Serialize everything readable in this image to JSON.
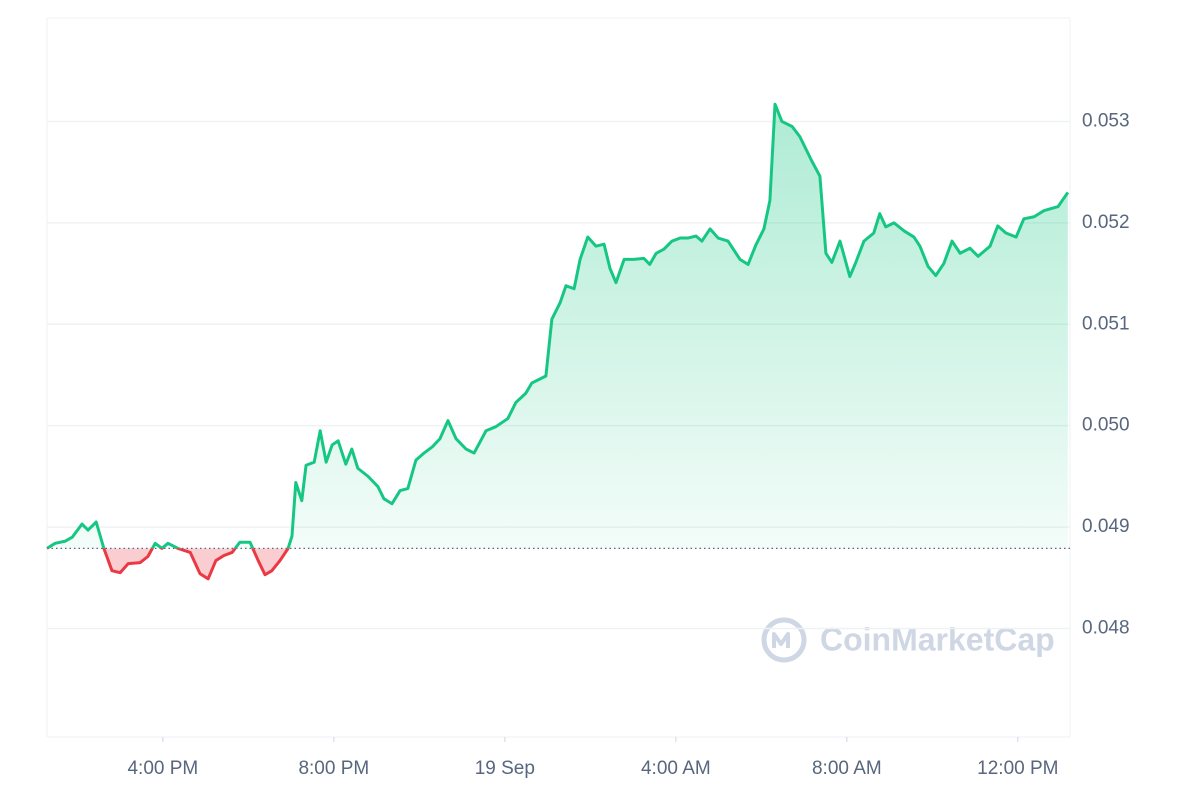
{
  "chart_data": {
    "type": "line",
    "watermark": "CoinMarketCap",
    "xlim": [
      13.29,
      37.22
    ],
    "xticks": [
      {
        "value": 16,
        "label": "4:00 PM"
      },
      {
        "value": 20,
        "label": "8:00 PM"
      },
      {
        "value": 24,
        "label": "19 Sep"
      },
      {
        "value": 28,
        "label": "4:00 AM"
      },
      {
        "value": 32,
        "label": "8:00 AM"
      },
      {
        "value": 36,
        "label": "12:00 PM"
      }
    ],
    "ylim": [
      0.04693,
      0.05402
    ],
    "yticks": [
      0.048,
      0.049,
      {
        "value": 0.05,
        "label": "0.050"
      },
      0.051,
      0.052,
      0.053
    ],
    "grid": true,
    "up_color": "#16c784",
    "down_color": "#ea3943",
    "x": [
      13.29,
      13.48,
      13.71,
      13.88,
      14.11,
      14.25,
      14.44,
      14.62,
      14.81,
      15.0,
      15.19,
      15.47,
      15.65,
      15.82,
      15.98,
      16.12,
      16.35,
      16.64,
      16.87,
      17.06,
      17.24,
      17.43,
      17.62,
      17.8,
      18.04,
      18.23,
      18.39,
      18.55,
      18.74,
      18.93,
      19.02,
      19.11,
      19.25,
      19.35,
      19.54,
      19.68,
      19.82,
      19.96,
      20.1,
      20.28,
      20.42,
      20.56,
      20.8,
      21.03,
      21.17,
      21.36,
      21.55,
      21.73,
      21.92,
      22.11,
      22.3,
      22.48,
      22.67,
      22.86,
      23.09,
      23.28,
      23.56,
      23.79,
      24.07,
      24.26,
      24.49,
      24.63,
      24.82,
      24.96,
      25.1,
      25.29,
      25.43,
      25.62,
      25.76,
      25.94,
      26.13,
      26.32,
      26.46,
      26.6,
      26.79,
      27.02,
      27.25,
      27.39,
      27.54,
      27.72,
      27.91,
      28.1,
      28.28,
      28.47,
      28.61,
      28.8,
      28.99,
      29.22,
      29.5,
      29.69,
      29.87,
      30.06,
      30.2,
      30.32,
      30.48,
      30.72,
      30.9,
      31.18,
      31.37,
      31.51,
      31.65,
      31.84,
      32.07,
      32.21,
      32.4,
      32.63,
      32.77,
      32.91,
      33.1,
      33.34,
      33.57,
      33.71,
      33.9,
      34.08,
      34.27,
      34.46,
      34.65,
      34.88,
      35.07,
      35.35,
      35.53,
      35.72,
      35.96,
      36.14,
      36.38,
      36.61,
      36.94,
      37.17
    ],
    "series": [
      {
        "values": [
          0.04879,
          0.04884,
          0.04886,
          0.0489,
          0.04903,
          0.04897,
          0.04905,
          0.04879,
          0.04857,
          0.04855,
          0.04864,
          0.04865,
          0.04871,
          0.04884,
          0.04879,
          0.04884,
          0.04879,
          0.04875,
          0.04854,
          0.04849,
          0.04867,
          0.04872,
          0.04875,
          0.04885,
          0.04885,
          0.04867,
          0.04853,
          0.04857,
          0.04867,
          0.04879,
          0.04891,
          0.04944,
          0.04926,
          0.04961,
          0.04964,
          0.04995,
          0.04964,
          0.04981,
          0.04985,
          0.04962,
          0.04977,
          0.04958,
          0.0495,
          0.0494,
          0.04928,
          0.04923,
          0.04936,
          0.04938,
          0.04966,
          0.04973,
          0.04979,
          0.04987,
          0.05005,
          0.04987,
          0.04977,
          0.04973,
          0.04995,
          0.04999,
          0.05007,
          0.05023,
          0.05032,
          0.05042,
          0.05046,
          0.05049,
          0.05105,
          0.05121,
          0.05138,
          0.05135,
          0.05164,
          0.05186,
          0.05177,
          0.05179,
          0.05155,
          0.05141,
          0.05164,
          0.05164,
          0.05165,
          0.05159,
          0.0517,
          0.05174,
          0.05182,
          0.05185,
          0.05185,
          0.05187,
          0.05182,
          0.05194,
          0.05185,
          0.05182,
          0.05164,
          0.05159,
          0.05178,
          0.05194,
          0.05222,
          0.05317,
          0.053,
          0.05295,
          0.05285,
          0.05261,
          0.05246,
          0.0517,
          0.05161,
          0.05182,
          0.05147,
          0.05161,
          0.05182,
          0.0519,
          0.05209,
          0.05196,
          0.052,
          0.05192,
          0.05186,
          0.05177,
          0.05157,
          0.05148,
          0.0516,
          0.05182,
          0.0517,
          0.05175,
          0.05167,
          0.05177,
          0.05197,
          0.0519,
          0.05186,
          0.05204,
          0.05206,
          0.05212,
          0.05216,
          0.0523
        ]
      }
    ]
  }
}
